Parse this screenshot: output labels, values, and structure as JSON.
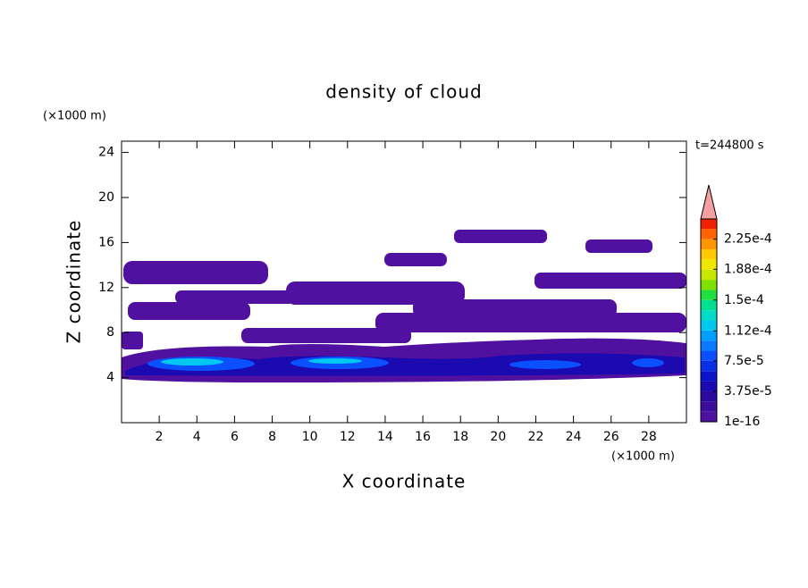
{
  "chart_data": {
    "type": "contour",
    "title": "density of cloud",
    "x_label": "X coordinate",
    "y_label": "Z coordinate",
    "x_unit": "(×1000 m)",
    "y_unit": "(×1000 m)",
    "annotation": "t=244800 s",
    "xlim": [
      0,
      30
    ],
    "ylim": [
      0,
      25
    ],
    "xticks": [
      2,
      4,
      6,
      8,
      10,
      12,
      14,
      16,
      18,
      20,
      22,
      24,
      26,
      28
    ],
    "yticks": [
      4,
      8,
      12,
      16,
      20,
      24
    ],
    "colorbar": {
      "range": [
        0,
        0.00025
      ],
      "ticks": [
        {
          "value": 1e-16,
          "label": "1e-16"
        },
        {
          "value": 3.75e-05,
          "label": "3.75e-5"
        },
        {
          "value": 7.5e-05,
          "label": "7.5e-5"
        },
        {
          "value": 0.000112,
          "label": "1.12e-4"
        },
        {
          "value": 0.00015,
          "label": "1.5e-4"
        },
        {
          "value": 0.000188,
          "label": "1.88e-4"
        },
        {
          "value": 0.000225,
          "label": "2.25e-4"
        }
      ],
      "colors": [
        "#5010a0",
        "#3c0c9c",
        "#2c0aa0",
        "#1a0ab0",
        "#0a14c8",
        "#0a30e6",
        "#0a50ff",
        "#0a78ff",
        "#00a0ff",
        "#00c8f0",
        "#00dcc8",
        "#00e090",
        "#20e040",
        "#80e000",
        "#c8e600",
        "#f0e600",
        "#ffc800",
        "#ff9600",
        "#ff6400",
        "#f02000"
      ],
      "extend_color": "#f4a0a0"
    }
  }
}
